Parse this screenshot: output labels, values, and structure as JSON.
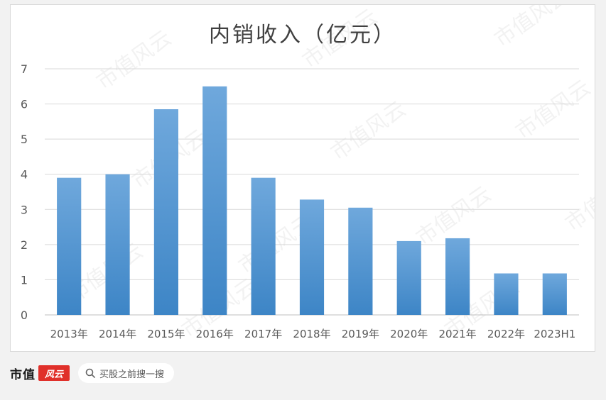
{
  "chart_data": {
    "type": "bar",
    "title": "内销收入（亿元）",
    "categories": [
      "2013年",
      "2014年",
      "2015年",
      "2016年",
      "2017年",
      "2018年",
      "2019年",
      "2020年",
      "2021年",
      "2022年",
      "2023H1"
    ],
    "values": [
      3.9,
      4.0,
      5.85,
      6.5,
      3.9,
      3.28,
      3.05,
      2.1,
      2.18,
      1.18,
      1.18
    ],
    "xlabel": "",
    "ylabel": "",
    "ylim": [
      0,
      7
    ],
    "yticks": [
      "0",
      "1",
      "2",
      "3",
      "4",
      "5",
      "6",
      "7"
    ],
    "grid": true,
    "bar_color": "#5b9bd5"
  },
  "watermark": {
    "text": "市值风云"
  },
  "footer": {
    "brand": "市值",
    "logo_text": "风云",
    "search_label": "买股之前搜一搜",
    "search_icon": "search-icon"
  }
}
